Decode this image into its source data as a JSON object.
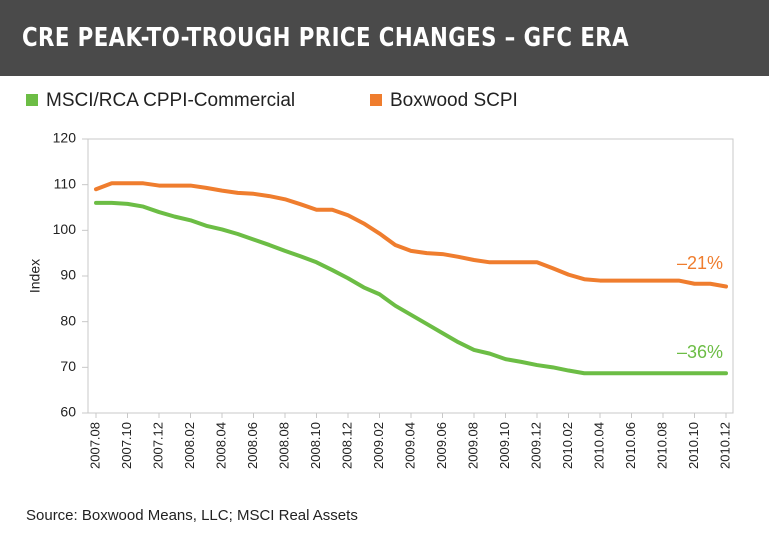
{
  "chart_data": {
    "type": "line",
    "title": "CRE PEAK-TO-TROUGH PRICE CHANGES – GFC ERA",
    "y_label": "Index",
    "source": "Source: Boxwood Means, LLC; MSCI Real Assets",
    "categories": [
      "2007.08",
      null,
      "2007.10",
      null,
      "2007.12",
      null,
      "2008.02",
      null,
      "2008.04",
      null,
      "2008.06",
      null,
      "2008.08",
      null,
      "2008.10",
      null,
      "2008.12",
      null,
      "2009.02",
      null,
      "2009.04",
      null,
      "2009.06",
      null,
      "2009.08",
      null,
      "2009.10",
      null,
      "2009.12",
      null,
      "2010.02",
      null,
      "2010.04",
      null,
      "2010.06",
      null,
      "2010.08",
      null,
      "2010.10",
      null,
      "2010.12"
    ],
    "series": [
      {
        "name": "MSCI/RCA CPPI-Commercial",
        "color": "#6cbd45",
        "values": [
          106,
          106,
          105.8,
          105.2,
          104,
          103,
          102.2,
          101,
          100.2,
          99.2,
          98,
          96.8,
          95.5,
          94.3,
          93,
          91.3,
          89.5,
          87.5,
          86,
          83.5,
          81.5,
          79.5,
          77.5,
          75.5,
          73.8,
          73,
          71.8,
          71.2,
          70.5,
          70,
          69.3,
          68.7,
          68.7,
          68.7,
          68.7,
          68.7,
          68.7,
          68.7,
          68.7,
          68.7,
          68.7
        ]
      },
      {
        "name": "Boxwood SCPI",
        "color": "#ef7d2e",
        "values": [
          109,
          110.3,
          110.3,
          110.3,
          109.8,
          109.8,
          109.8,
          109.3,
          108.7,
          108.2,
          108,
          107.5,
          106.8,
          105.7,
          104.5,
          104.5,
          103.3,
          101.5,
          99.3,
          96.8,
          95.5,
          95,
          94.8,
          94.2,
          93.5,
          93,
          93,
          93,
          93,
          91.7,
          90.3,
          89.3,
          89,
          89,
          89,
          89,
          89,
          89,
          88.3,
          88.3,
          87.7
        ]
      }
    ],
    "annotations": [
      {
        "text": "–21%",
        "color": "#ef7d2e"
      },
      {
        "text": "–36%",
        "color": "#6cbd45"
      }
    ],
    "ylim": [
      60,
      120
    ],
    "yticks": [
      60,
      70,
      80,
      90,
      100,
      110,
      120
    ],
    "grid": false
  }
}
